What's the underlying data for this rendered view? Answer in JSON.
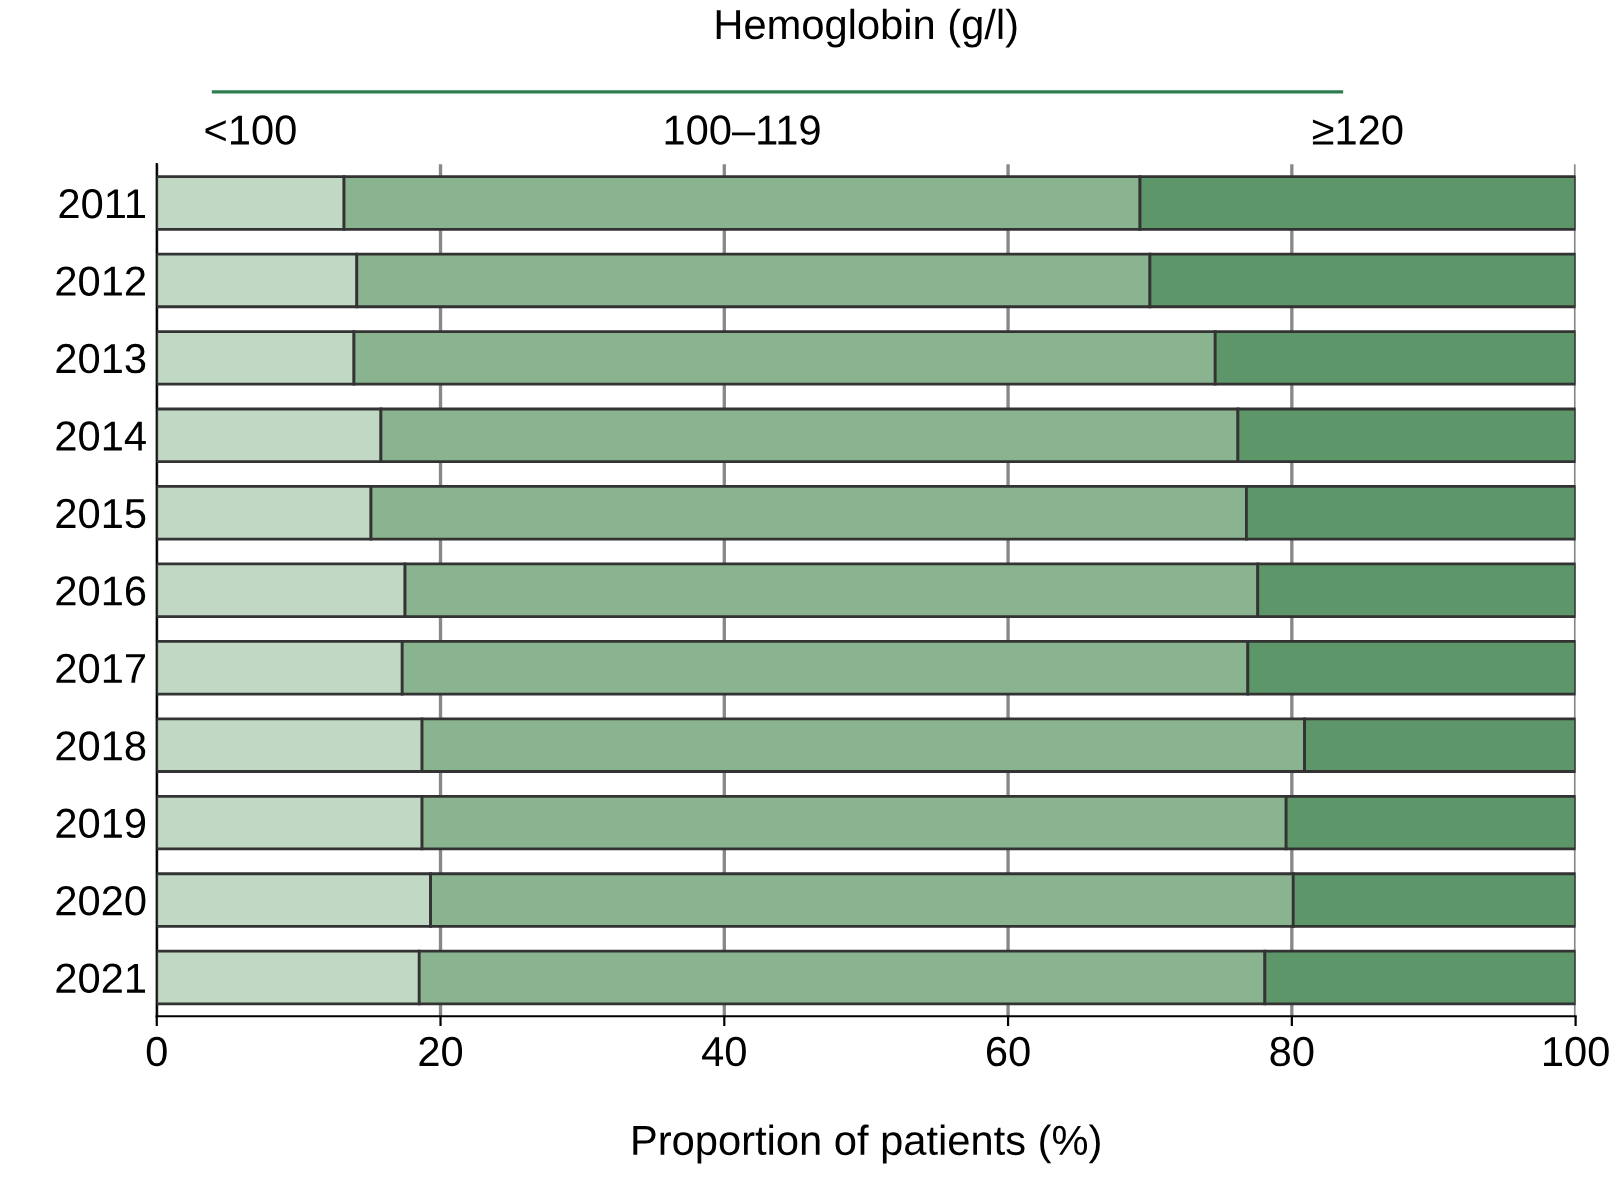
{
  "chart_data": {
    "type": "bar",
    "orientation": "horizontal",
    "stacked": true,
    "categories": [
      "2011",
      "2012",
      "2013",
      "2014",
      "2015",
      "2016",
      "2017",
      "2018",
      "2019",
      "2020",
      "2021"
    ],
    "xlabel": "Proportion of patients (%)",
    "legend_title": "Hemoglobin (g/l)",
    "legend": "top",
    "xlim": [
      0,
      100
    ],
    "xticks": [
      0,
      20,
      40,
      60,
      80,
      100
    ],
    "grid": "x",
    "series": [
      {
        "name": "<100",
        "color": "#c1d8c4",
        "values": [
          13.2,
          14.1,
          13.9,
          15.8,
          15.1,
          17.5,
          17.3,
          18.7,
          18.7,
          19.3,
          18.5
        ]
      },
      {
        "name": "100–119",
        "color": "#8ab48f",
        "values": [
          56.1,
          55.9,
          60.7,
          60.4,
          61.7,
          60.1,
          59.6,
          62.2,
          60.9,
          60.8,
          59.6
        ]
      },
      {
        "name": "≥120",
        "color": "#5c9669",
        "values": [
          30.7,
          30.0,
          25.4,
          23.8,
          23.2,
          22.4,
          23.1,
          19.1,
          20.4,
          19.9,
          21.9
        ]
      }
    ]
  }
}
